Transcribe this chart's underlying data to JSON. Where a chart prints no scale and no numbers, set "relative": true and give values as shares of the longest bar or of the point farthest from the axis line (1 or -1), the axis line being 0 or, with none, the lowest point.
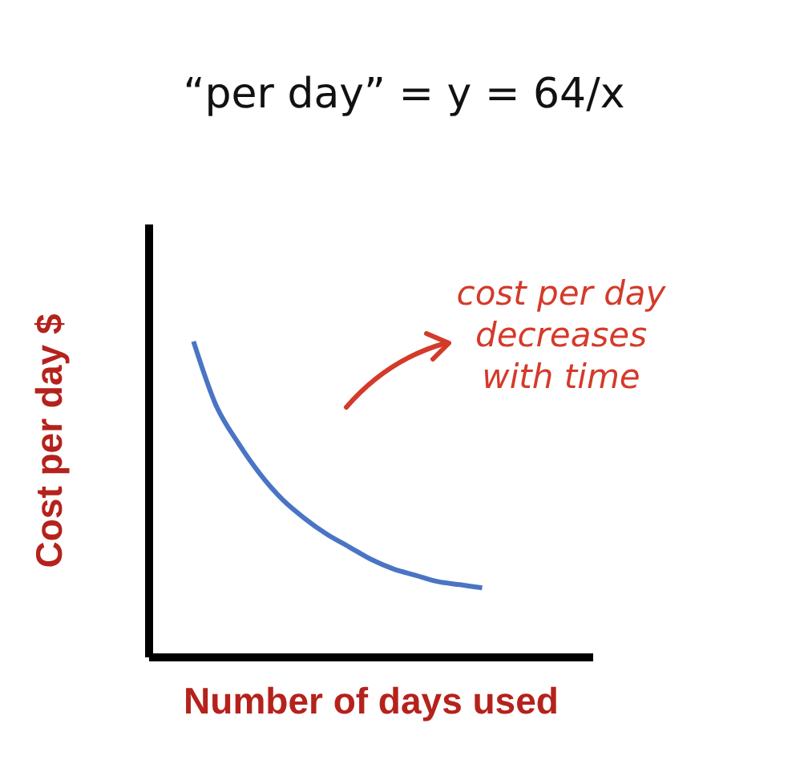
{
  "chart_data": {
    "type": "line",
    "title": "“per day” = y = 64/x",
    "xlabel": "Number of days used",
    "ylabel": "Cost per day $",
    "annotations": [
      "cost per day decreases with time"
    ],
    "relative": true,
    "color": "#4a74c4",
    "categories": [
      null,
      null,
      null,
      null,
      null,
      null,
      null,
      null,
      null,
      null,
      null,
      null,
      null,
      null,
      null,
      null,
      null,
      null,
      null,
      null,
      null
    ],
    "values": [
      null,
      null,
      1,
      0.8,
      0.68,
      0.58,
      0.5,
      0.44,
      0.39,
      0.35,
      0.31,
      0.28,
      0.26,
      0.24,
      0.23,
      0.22,
      null,
      null,
      null,
      null,
      null
    ]
  }
}
